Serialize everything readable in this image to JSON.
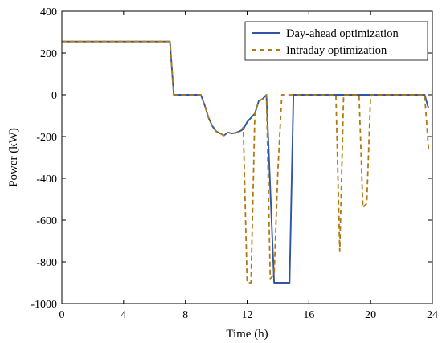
{
  "chart_data": {
    "type": "line",
    "xlabel": "Time (h)",
    "ylabel": "Power (kW)",
    "xlim": [
      0,
      24
    ],
    "ylim": [
      -1000,
      400
    ],
    "xticks": [
      0,
      4,
      8,
      12,
      16,
      20,
      24
    ],
    "yticks": [
      400,
      200,
      0,
      -200,
      -400,
      -600,
      -800,
      -1000
    ],
    "legend_position": "top-right",
    "grid": false,
    "series": [
      {
        "name": "Day-ahead optimization",
        "color": "#2f55a4",
        "style": "solid",
        "points": [
          [
            0,
            255
          ],
          [
            7,
            255
          ],
          [
            7.25,
            0
          ],
          [
            9,
            0
          ],
          [
            9.25,
            -50
          ],
          [
            9.5,
            -110
          ],
          [
            9.75,
            -150
          ],
          [
            10,
            -175
          ],
          [
            10.25,
            -185
          ],
          [
            10.5,
            -195
          ],
          [
            10.75,
            -180
          ],
          [
            11,
            -185
          ],
          [
            11.25,
            -182
          ],
          [
            11.5,
            -175
          ],
          [
            11.75,
            -165
          ],
          [
            12,
            -130
          ],
          [
            12.25,
            -110
          ],
          [
            12.5,
            -90
          ],
          [
            12.75,
            -30
          ],
          [
            13,
            -20
          ],
          [
            13.25,
            0
          ],
          [
            13.75,
            -900
          ],
          [
            14.75,
            -900
          ],
          [
            15,
            0
          ],
          [
            23.5,
            0
          ],
          [
            23.75,
            -65
          ]
        ]
      },
      {
        "name": "Intraday optimization",
        "color": "#b07a12",
        "style": "dashed",
        "points": [
          [
            0,
            255
          ],
          [
            7,
            255
          ],
          [
            7.25,
            0
          ],
          [
            9,
            0
          ],
          [
            9.25,
            -50
          ],
          [
            9.5,
            -110
          ],
          [
            9.75,
            -150
          ],
          [
            10,
            -175
          ],
          [
            10.25,
            -185
          ],
          [
            10.5,
            -195
          ],
          [
            10.75,
            -180
          ],
          [
            11,
            -185
          ],
          [
            11.25,
            -182
          ],
          [
            11.5,
            -180
          ],
          [
            11.75,
            -155
          ],
          [
            12,
            -900
          ],
          [
            12.25,
            -900
          ],
          [
            12.5,
            -90
          ],
          [
            12.75,
            -30
          ],
          [
            13,
            -20
          ],
          [
            13.25,
            0
          ],
          [
            13.5,
            -880
          ],
          [
            13.75,
            -860
          ],
          [
            14,
            -350
          ],
          [
            14.25,
            0
          ],
          [
            14.75,
            0
          ],
          [
            15,
            0
          ],
          [
            17.75,
            0
          ],
          [
            18,
            -750
          ],
          [
            18.25,
            0
          ],
          [
            19.25,
            0
          ],
          [
            19.5,
            -540
          ],
          [
            19.75,
            -520
          ],
          [
            20,
            0
          ],
          [
            23.5,
            0
          ],
          [
            23.75,
            -260
          ]
        ]
      }
    ]
  }
}
